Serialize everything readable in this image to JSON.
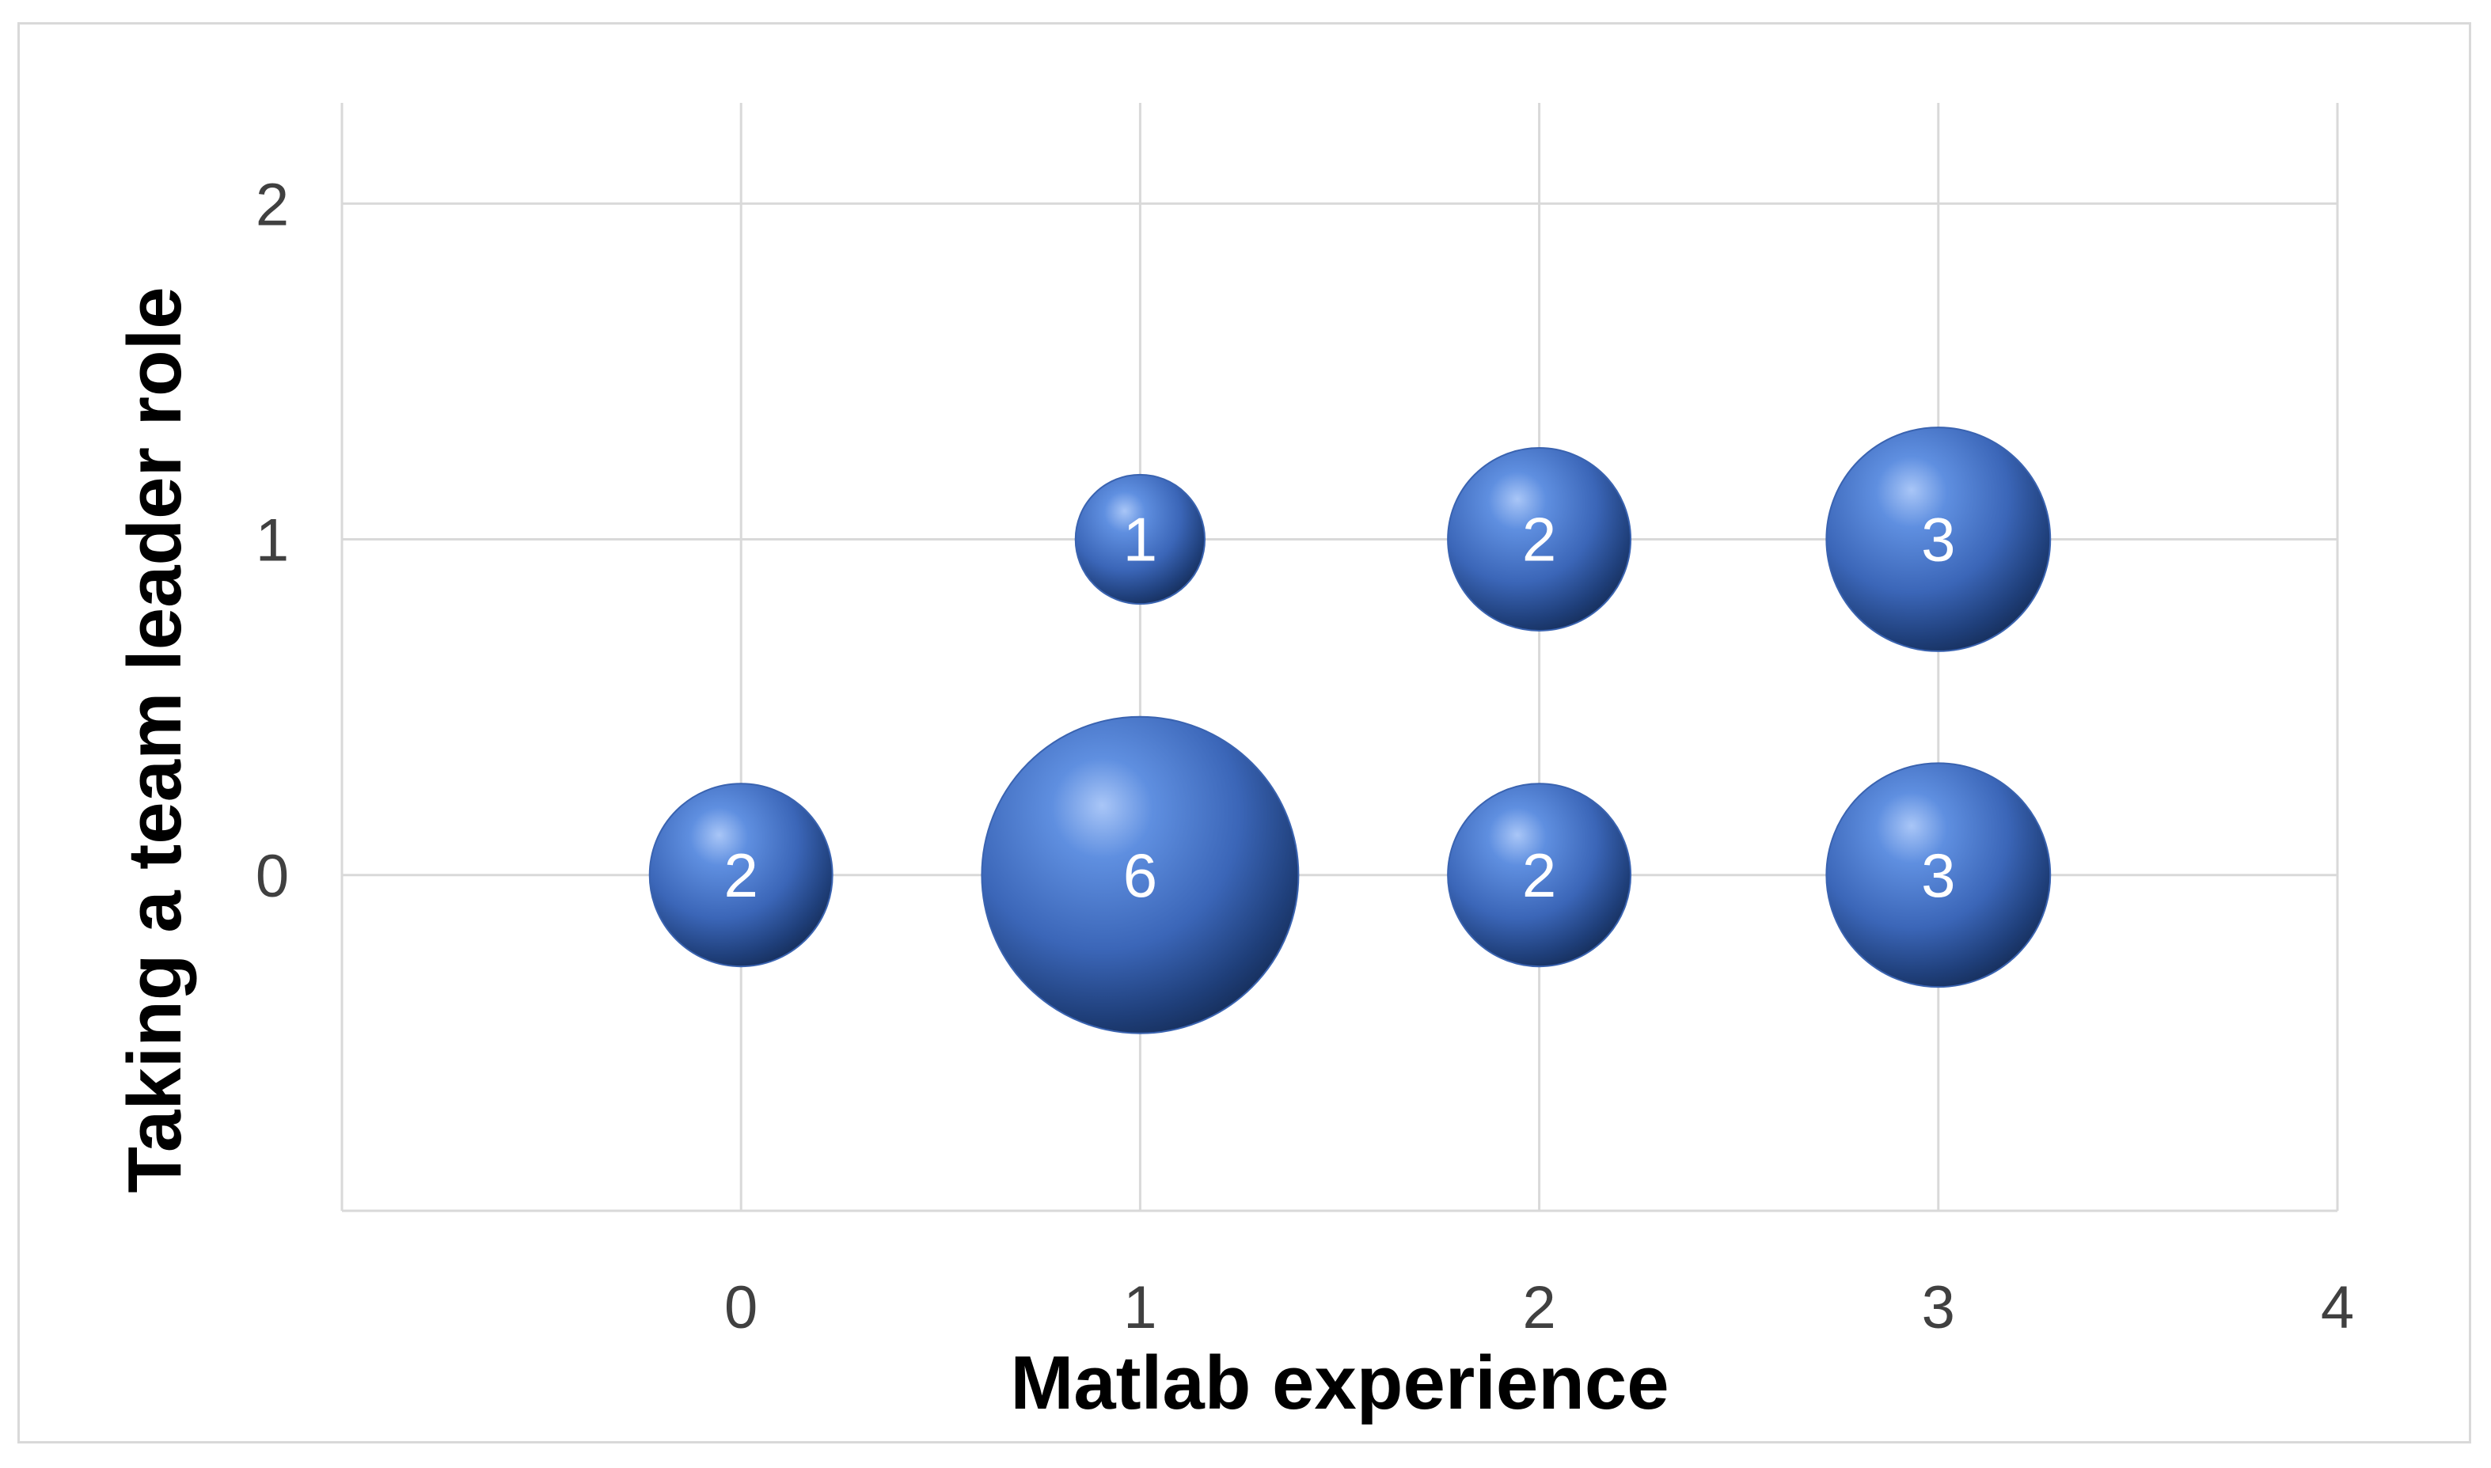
{
  "chart_data": {
    "type": "bubble",
    "title": "",
    "xlabel": "Matlab experience",
    "ylabel": "Taking a team leader role",
    "xlim": [
      -1,
      4
    ],
    "ylim": [
      -1,
      2.3
    ],
    "x_ticks": [
      0,
      1,
      2,
      3,
      4
    ],
    "y_ticks": [
      0,
      1,
      2
    ],
    "grid": true,
    "bubble_color": "#4472c4",
    "points": [
      {
        "x": 0,
        "y": 0,
        "size": 2,
        "label": "2"
      },
      {
        "x": 1,
        "y": 0,
        "size": 6,
        "label": "6"
      },
      {
        "x": 2,
        "y": 0,
        "size": 2,
        "label": "2"
      },
      {
        "x": 3,
        "y": 0,
        "size": 3,
        "label": "3"
      },
      {
        "x": 1,
        "y": 1,
        "size": 1,
        "label": "1"
      },
      {
        "x": 2,
        "y": 1,
        "size": 2,
        "label": "2"
      },
      {
        "x": 3,
        "y": 1,
        "size": 3,
        "label": "3"
      }
    ]
  }
}
